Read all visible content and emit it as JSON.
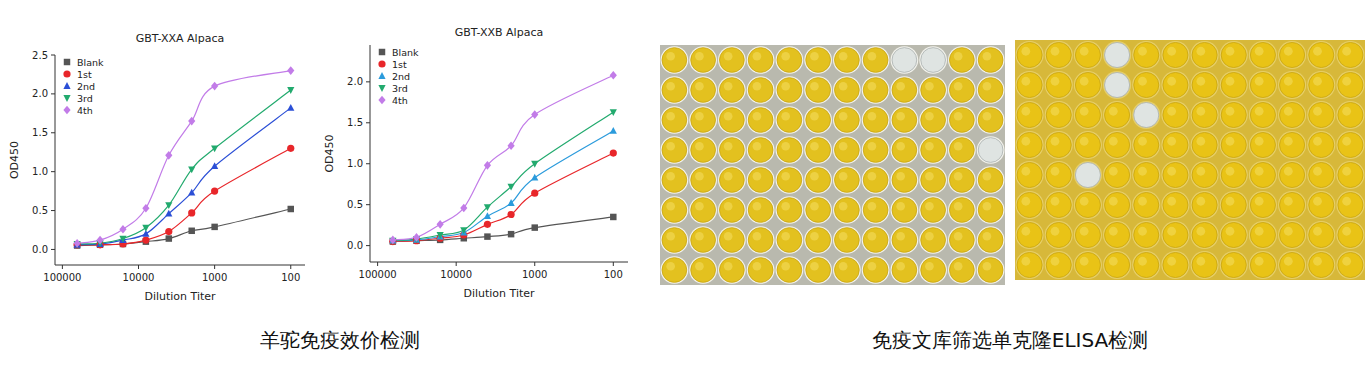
{
  "chart_data": [
    {
      "type": "line",
      "title": "GBT-XXA  Alpaca",
      "x_label": "Dilution Titer",
      "y_label": "OD450",
      "log": "x",
      "legend": "upper left",
      "grid": false,
      "x": [
        64000,
        32000,
        16000,
        8000,
        4000,
        2000,
        1000,
        100
      ],
      "xlim": [
        125000,
        65
      ],
      "xticks": [
        100000,
        10000,
        1000,
        100
      ],
      "ylim": [
        -0.2,
        2.5
      ],
      "yticks": [
        {
          "value": 0,
          "label": "0.0"
        },
        0.5,
        {
          "value": 1,
          "label": "1.0"
        },
        1.5,
        {
          "value": 2,
          "label": "2.0"
        },
        2.5
      ],
      "series": [
        {
          "name": "Blank",
          "color": "#555555",
          "marker": "square",
          "values": [
            0.05,
            0.06,
            0.07,
            0.1,
            0.14,
            0.24,
            0.29,
            0.52
          ]
        },
        {
          "name": "1st",
          "color": "#e8262a",
          "marker": "circle",
          "values": [
            0.06,
            0.06,
            0.07,
            0.12,
            0.23,
            0.47,
            0.75,
            1.3
          ]
        },
        {
          "name": "2nd",
          "color": "#2b4fd6",
          "marker": "triangle",
          "values": [
            0.06,
            0.07,
            0.12,
            0.2,
            0.46,
            0.73,
            1.07,
            1.82
          ]
        },
        {
          "name": "3rd",
          "color": "#22aa6e",
          "marker": "triangle-down",
          "values": [
            0.07,
            0.08,
            0.14,
            0.28,
            0.57,
            1.03,
            1.3,
            2.05
          ]
        },
        {
          "name": "4th",
          "color": "#c27ce8",
          "marker": "diamond",
          "values": [
            0.08,
            0.12,
            0.26,
            0.53,
            1.21,
            1.65,
            2.1,
            2.3
          ]
        }
      ]
    },
    {
      "type": "line",
      "title": "GBT-XXB  Alpaca",
      "x_label": "Dilution Titer",
      "y_label": "OD450",
      "log": "x",
      "legend": "upper left",
      "grid": false,
      "x": [
        64000,
        32000,
        16000,
        8000,
        4000,
        2000,
        1000,
        100
      ],
      "xlim": [
        125000,
        65
      ],
      "xticks": [
        100000,
        10000,
        1000,
        100
      ],
      "ylim": [
        -0.2,
        2.45
      ],
      "yticks": [
        {
          "value": 0,
          "label": "0.0"
        },
        0.5,
        {
          "value": 1,
          "label": "1.0"
        },
        1.5,
        {
          "value": 2,
          "label": "2.0"
        }
      ],
      "series": [
        {
          "name": "Blank",
          "color": "#555555",
          "marker": "square",
          "values": [
            0.05,
            0.06,
            0.07,
            0.09,
            0.11,
            0.14,
            0.22,
            0.35
          ]
        },
        {
          "name": "1st",
          "color": "#e8262a",
          "marker": "circle",
          "values": [
            0.05,
            0.06,
            0.09,
            0.13,
            0.26,
            0.38,
            0.64,
            1.13
          ]
        },
        {
          "name": "2nd",
          "color": "#2b9bdc",
          "marker": "triangle",
          "values": [
            0.06,
            0.07,
            0.11,
            0.16,
            0.36,
            0.52,
            0.83,
            1.4
          ]
        },
        {
          "name": "3rd",
          "color": "#22aa6e",
          "marker": "triangle-down",
          "values": [
            0.06,
            0.08,
            0.13,
            0.19,
            0.47,
            0.72,
            1.0,
            1.63
          ]
        },
        {
          "name": "4th",
          "color": "#c27ce8",
          "marker": "diamond",
          "values": [
            0.07,
            0.1,
            0.26,
            0.46,
            0.98,
            1.22,
            1.6,
            2.08
          ]
        }
      ]
    }
  ],
  "plates": [
    {
      "rows": 8,
      "cols": 12,
      "clear_wells": [
        [
          0,
          8
        ],
        [
          0,
          9
        ],
        [
          3,
          11
        ]
      ]
    },
    {
      "rows": 8,
      "cols": 12,
      "clear_wells": [
        [
          0,
          3
        ],
        [
          1,
          3
        ],
        [
          2,
          4
        ],
        [
          4,
          2
        ]
      ]
    }
  ],
  "captions": [
    "羊驼免疫效价检测",
    "免疫文库筛选单克隆ELISA检测"
  ]
}
